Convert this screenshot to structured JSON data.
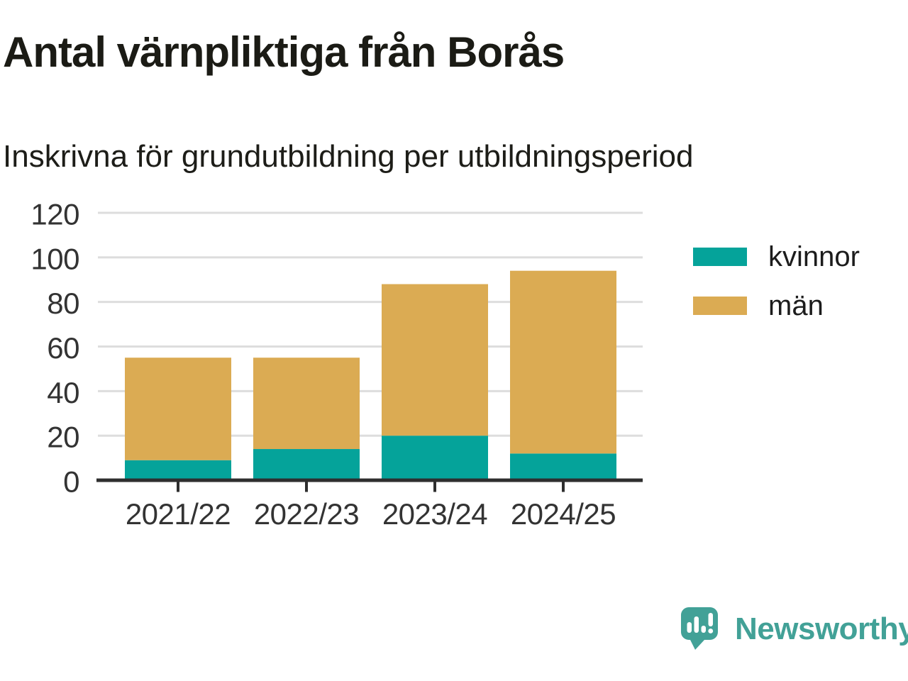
{
  "title": "Antal värnpliktiga från Borås",
  "subtitle": "Inskrivna för grundutbildning per utbildningsperiod",
  "legend": {
    "items": [
      {
        "label": "kvinnor",
        "color": "#05a39a"
      },
      {
        "label": "män",
        "color": "#dbab53"
      }
    ]
  },
  "branding": {
    "name": "Newsworthy",
    "color": "#42a197"
  },
  "colors": {
    "kvinnor": "#05a39a",
    "man": "#dbab53",
    "axis_line": "#2e2e2e",
    "axis_text": "#333333",
    "grid": "#dddddd"
  },
  "chart_data": {
    "type": "bar",
    "stacked": true,
    "title": "Antal värnpliktiga från Borås",
    "subtitle": "Inskrivna för grundutbildning per utbildningsperiod",
    "categories": [
      "2021/22",
      "2022/23",
      "2023/24",
      "2024/25"
    ],
    "series": [
      {
        "name": "kvinnor",
        "color": "#05a39a",
        "values": [
          9,
          14,
          20,
          12
        ]
      },
      {
        "name": "män",
        "color": "#dbab53",
        "values": [
          46,
          41,
          68,
          82
        ]
      }
    ],
    "stack_totals": [
      55,
      55,
      88,
      94
    ],
    "xlabel": "",
    "ylabel": "",
    "ylim": [
      0,
      120
    ],
    "yticks": [
      0,
      20,
      40,
      60,
      80,
      100,
      120
    ],
    "grid": true,
    "legend_position": "right"
  }
}
